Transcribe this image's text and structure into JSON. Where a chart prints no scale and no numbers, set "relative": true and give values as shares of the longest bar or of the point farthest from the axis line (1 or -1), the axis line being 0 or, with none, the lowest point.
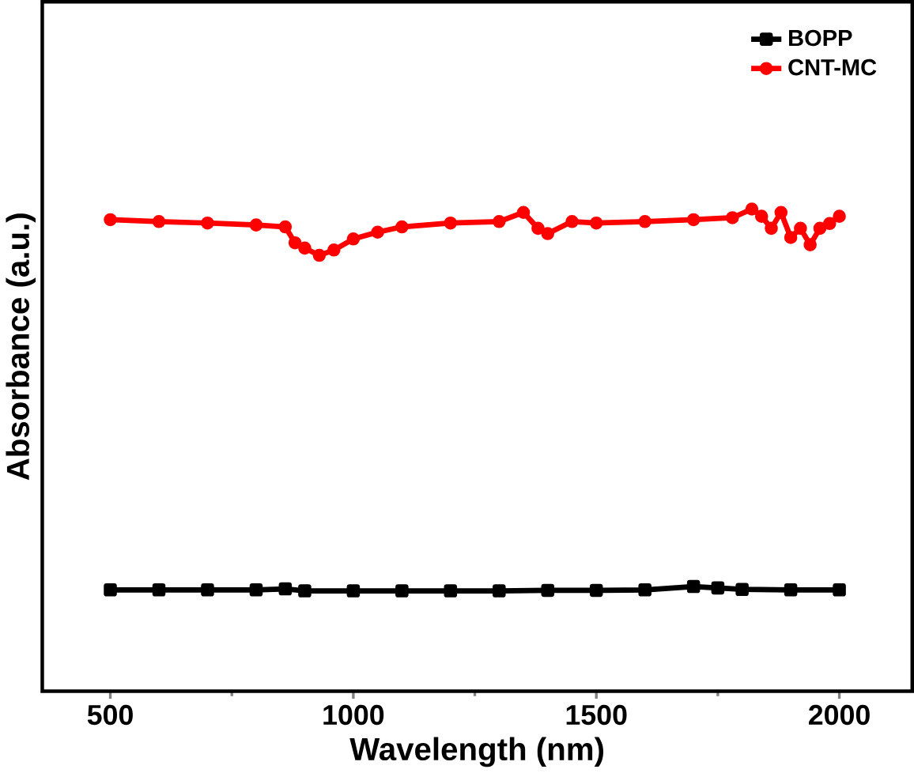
{
  "chart_data": {
    "type": "line",
    "xlabel": "Wavelength (nm)",
    "ylabel": "Absorbance (a.u.)",
    "relative": true,
    "xlim": [
      360,
      2150
    ],
    "xticks": [
      500,
      1000,
      1500,
      2000
    ],
    "legend": "top right",
    "grid": false,
    "series": [
      {
        "name": "BOPP",
        "color": "#000000",
        "marker": "square",
        "x": [
          500,
          600,
          700,
          800,
          860,
          900,
          1000,
          1100,
          1200,
          1300,
          1400,
          1500,
          1600,
          1700,
          1750,
          1800,
          1900,
          2000
        ],
        "values": [
          0.21,
          0.21,
          0.21,
          0.21,
          0.212,
          0.208,
          0.208,
          0.208,
          0.208,
          0.208,
          0.209,
          0.209,
          0.21,
          0.217,
          0.214,
          0.211,
          0.21,
          0.21
        ]
      },
      {
        "name": "CNT-MC",
        "color": "#ff0000",
        "marker": "circle",
        "x": [
          500,
          600,
          700,
          800,
          860,
          880,
          900,
          930,
          960,
          1000,
          1050,
          1100,
          1200,
          1300,
          1350,
          1380,
          1400,
          1450,
          1500,
          1600,
          1700,
          1780,
          1820,
          1840,
          1860,
          1880,
          1900,
          1920,
          1940,
          1960,
          1980,
          2000
        ],
        "values": [
          0.978,
          0.974,
          0.971,
          0.967,
          0.963,
          0.93,
          0.919,
          0.904,
          0.915,
          0.938,
          0.952,
          0.963,
          0.971,
          0.974,
          0.993,
          0.96,
          0.949,
          0.974,
          0.971,
          0.974,
          0.978,
          0.982,
          1.0,
          0.985,
          0.96,
          0.993,
          0.941,
          0.96,
          0.926,
          0.96,
          0.97,
          0.985
        ]
      }
    ]
  }
}
